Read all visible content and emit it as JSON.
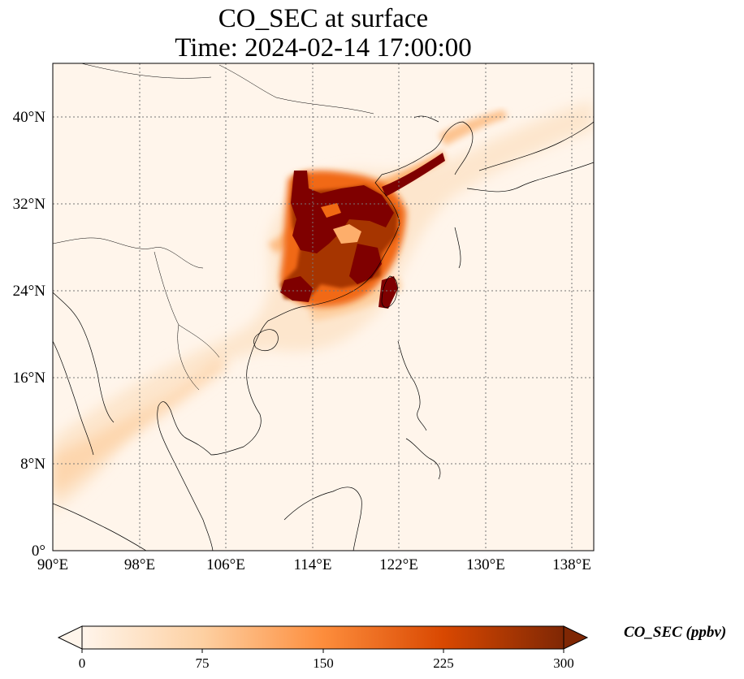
{
  "title": "CO_SEC at surface",
  "subtitle": "Time: 2024-02-14 17:00:00",
  "map": {
    "x_ticks": [
      "90°E",
      "98°E",
      "106°E",
      "114°E",
      "122°E",
      "130°E",
      "138°E"
    ],
    "y_ticks": [
      "0°",
      "8°N",
      "16°N",
      "24°N",
      "32°N",
      "40°N"
    ],
    "lon_range": [
      90,
      140
    ],
    "lat_range": [
      0,
      45
    ],
    "gridlines": true
  },
  "colorbar": {
    "label": "CO_SEC (ppbv)",
    "ticks": [
      "0",
      "75",
      "150",
      "225",
      "300"
    ],
    "range": [
      0,
      300
    ],
    "extend": "both",
    "colors": [
      "#fff5eb",
      "#fdd0a2",
      "#fd8d3c",
      "#d94801",
      "#7f2704"
    ]
  }
}
